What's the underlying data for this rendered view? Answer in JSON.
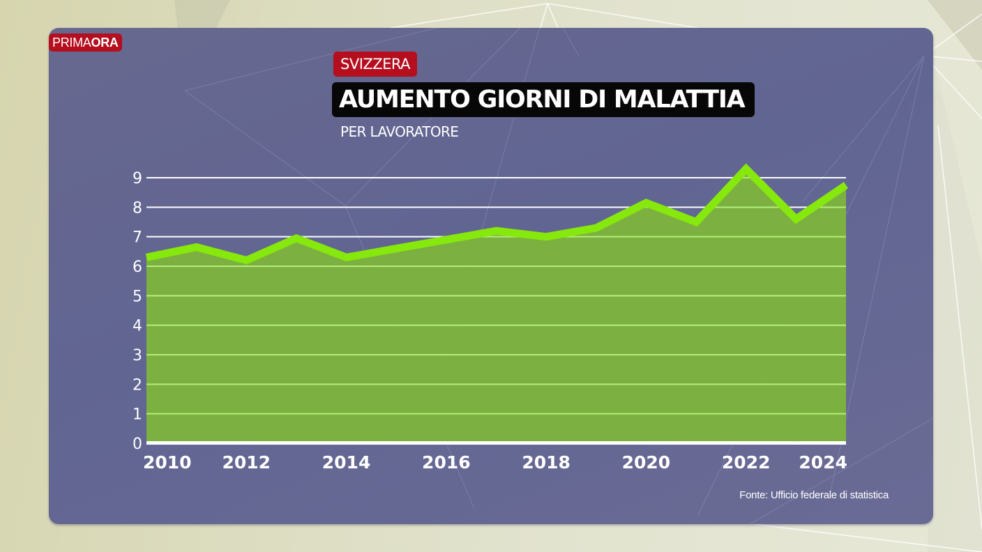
{
  "brand": {
    "part1": "PRIMA",
    "part2": "ORA"
  },
  "header": {
    "region_tag": "SVIZZERA",
    "title": "AUMENTO GIORNI DI MALATTIA",
    "subtitle": "PER LAVORATORE"
  },
  "source": "Fonte: Ufficio federale di statistica",
  "colors": {
    "panel": "#65678f",
    "brand_red": "#b50e1e",
    "title_bg": "#070707",
    "line": "#86e80c",
    "area": "#7db43e",
    "grid_above": "#ffffff",
    "grid_inside": "#b4ee78"
  },
  "chart_data": {
    "type": "area",
    "title": "AUMENTO GIORNI DI MALATTIA",
    "subtitle": "PER LAVORATORE",
    "xlabel": "",
    "ylabel": "",
    "x": [
      2010,
      2011,
      2012,
      2013,
      2014,
      2015,
      2016,
      2017,
      2018,
      2019,
      2020,
      2021,
      2022,
      2023,
      2024
    ],
    "series": [
      {
        "name": "Giorni di malattia per lavoratore",
        "values": [
          6.3,
          6.65,
          6.2,
          6.95,
          6.3,
          6.6,
          6.9,
          7.2,
          7.0,
          7.3,
          8.15,
          7.5,
          9.3,
          7.6,
          8.75
        ]
      }
    ],
    "xticks": [
      "2010",
      "2012",
      "2014",
      "2016",
      "2018",
      "2020",
      "2022",
      "2024"
    ],
    "yticks": [
      "0",
      "1",
      "2",
      "3",
      "4",
      "5",
      "6",
      "7",
      "8",
      "9"
    ],
    "ylim": [
      0,
      9
    ],
    "xlim": [
      2010,
      2024
    ],
    "grid": true,
    "legend": "none",
    "annotation": "Fonte: Ufficio federale di statistica"
  }
}
